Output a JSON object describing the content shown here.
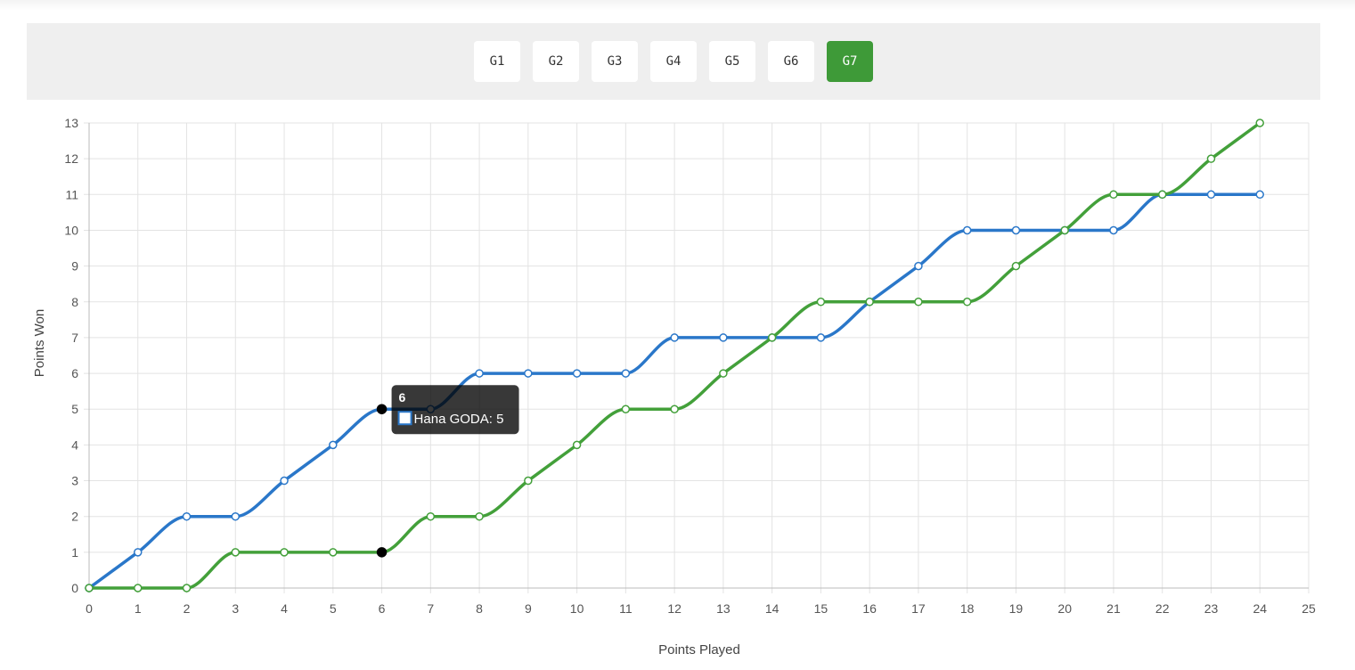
{
  "game_tabs": [
    {
      "label": "G1",
      "active": false
    },
    {
      "label": "G2",
      "active": false
    },
    {
      "label": "G3",
      "active": false
    },
    {
      "label": "G4",
      "active": false
    },
    {
      "label": "G5",
      "active": false
    },
    {
      "label": "G6",
      "active": false
    },
    {
      "label": "G7",
      "active": true
    }
  ],
  "colors": {
    "active_tab": "#3e9a38",
    "series_blue": "#2a77c9",
    "series_green": "#43a03a"
  },
  "chart_data": {
    "type": "line",
    "xlabel": "Points Played",
    "ylabel": "Points Won",
    "xlim": [
      0,
      25
    ],
    "ylim": [
      0,
      13
    ],
    "x_ticks": [
      0,
      1,
      2,
      3,
      4,
      5,
      6,
      7,
      8,
      9,
      10,
      11,
      12,
      13,
      14,
      15,
      16,
      17,
      18,
      19,
      20,
      21,
      22,
      23,
      24,
      25
    ],
    "y_ticks": [
      0,
      1,
      2,
      3,
      4,
      5,
      6,
      7,
      8,
      9,
      10,
      11,
      12,
      13
    ],
    "grid": true,
    "x": [
      0,
      1,
      2,
      3,
      4,
      5,
      6,
      7,
      8,
      9,
      10,
      11,
      12,
      13,
      14,
      15,
      16,
      17,
      18,
      19,
      20,
      21,
      22,
      23,
      24
    ],
    "series": [
      {
        "name": "Hana GODA",
        "color": "#2a77c9",
        "values": [
          0,
          1,
          2,
          2,
          3,
          4,
          5,
          5,
          6,
          6,
          6,
          6,
          7,
          7,
          7,
          7,
          8,
          9,
          10,
          10,
          10,
          10,
          11,
          11,
          11
        ]
      },
      {
        "color": "#43a03a",
        "values": [
          0,
          0,
          0,
          1,
          1,
          1,
          1,
          2,
          2,
          3,
          4,
          5,
          5,
          6,
          7,
          8,
          8,
          8,
          8,
          9,
          10,
          11,
          11,
          12,
          13
        ]
      }
    ],
    "tooltip": {
      "title": "6",
      "label": "Hana GODA: 5",
      "x": 6
    }
  }
}
